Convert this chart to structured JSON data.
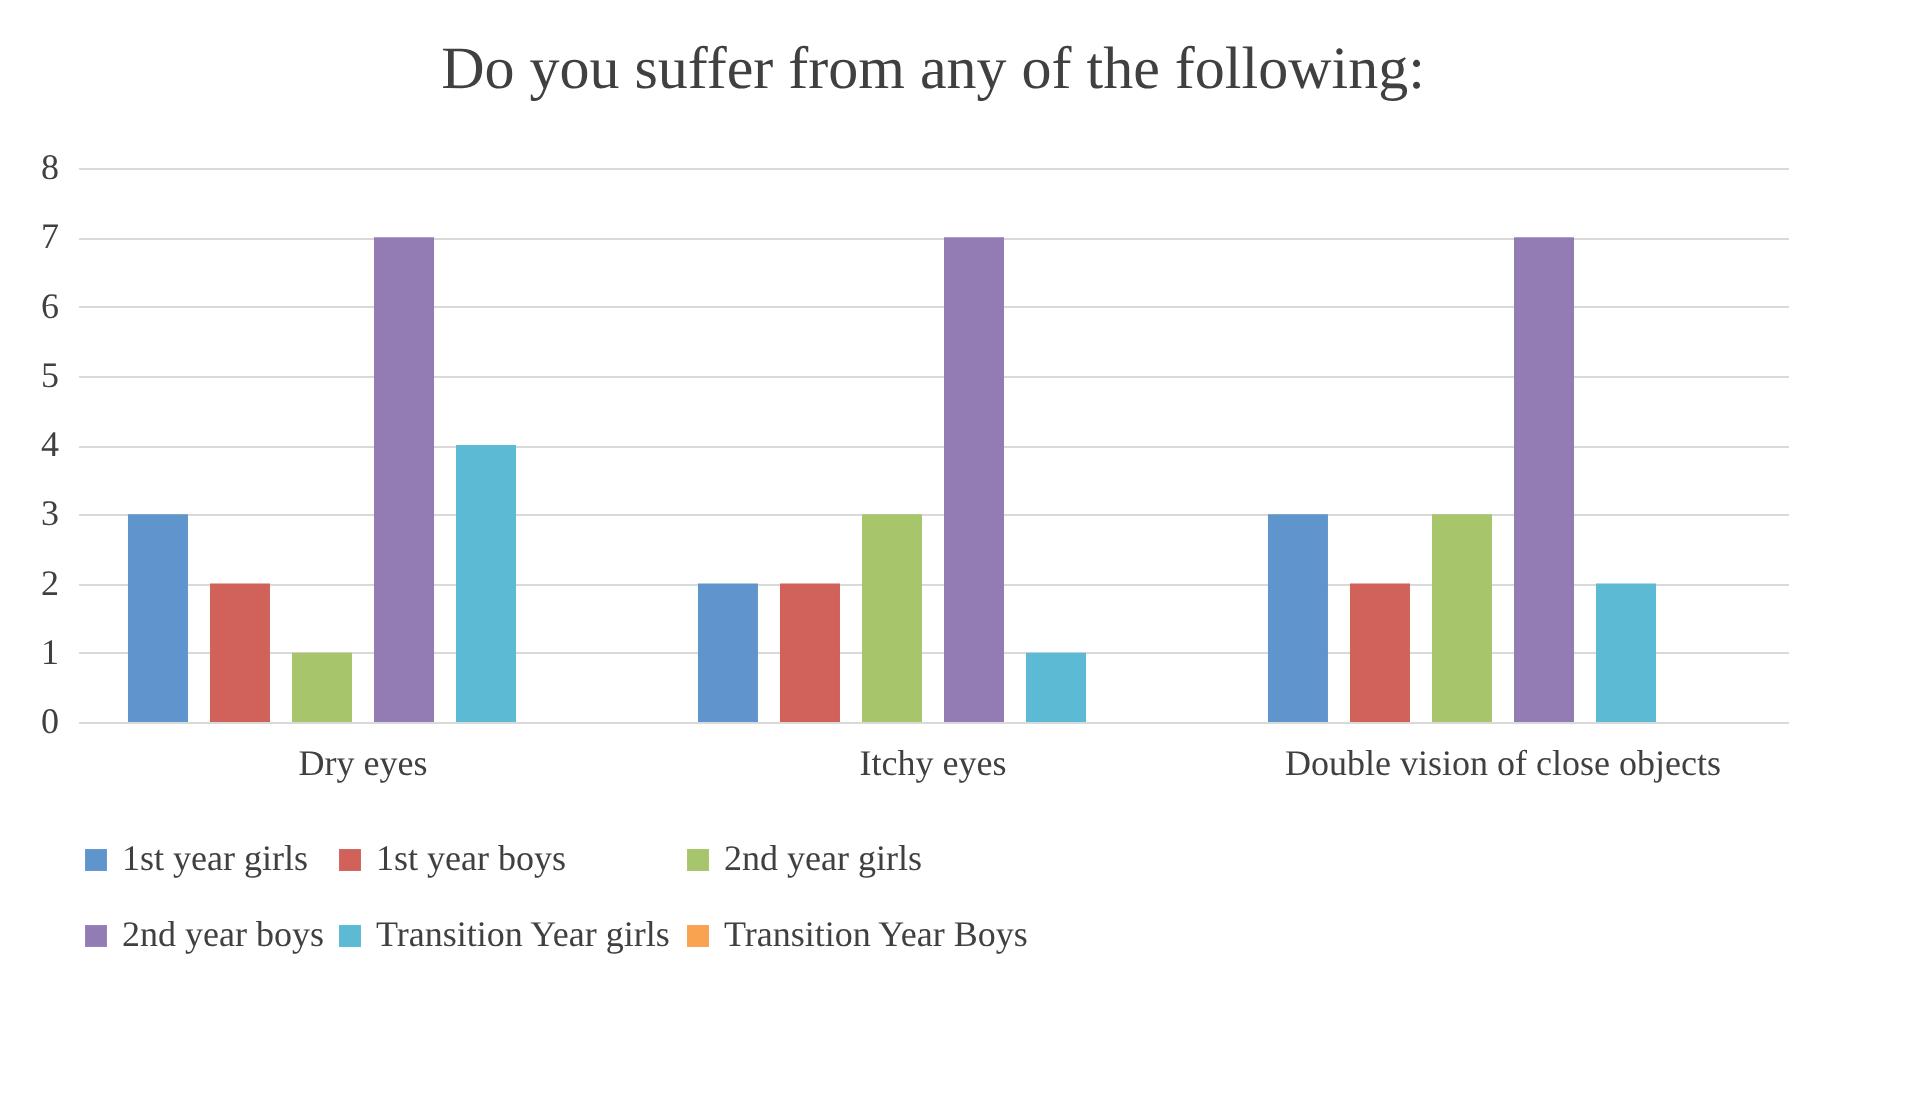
{
  "chart_data": {
    "type": "bar",
    "title": "Do you suffer from any of the following:",
    "categories": [
      "Dry eyes",
      "Itchy eyes",
      "Double vision of close objects"
    ],
    "series": [
      {
        "name": "1st year girls",
        "color": "#6094cc",
        "values": [
          3,
          2,
          3
        ]
      },
      {
        "name": "1st year boys",
        "color": "#d0625a",
        "values": [
          2,
          2,
          2
        ]
      },
      {
        "name": "2nd year girls",
        "color": "#a7c56a",
        "values": [
          1,
          3,
          3
        ]
      },
      {
        "name": "2nd year boys",
        "color": "#937cb4",
        "values": [
          7,
          7,
          7
        ]
      },
      {
        "name": "Transition Year girls",
        "color": "#5cbad4",
        "values": [
          4,
          1,
          2
        ]
      },
      {
        "name": "Transition Year Boys",
        "color": "#f9a24f",
        "values": [
          0,
          0,
          0
        ]
      }
    ],
    "ylim": [
      0,
      8
    ],
    "yticks": [
      0,
      1,
      2,
      3,
      4,
      5,
      6,
      7,
      8
    ],
    "grid": "y",
    "legend": "bottom"
  }
}
